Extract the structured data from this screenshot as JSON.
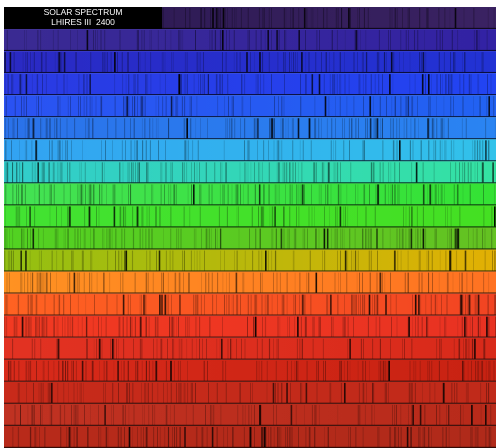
{
  "label": {
    "title": "SOLAR SPECTRUM",
    "subtitle": "LHIRES III  2400"
  }
}
